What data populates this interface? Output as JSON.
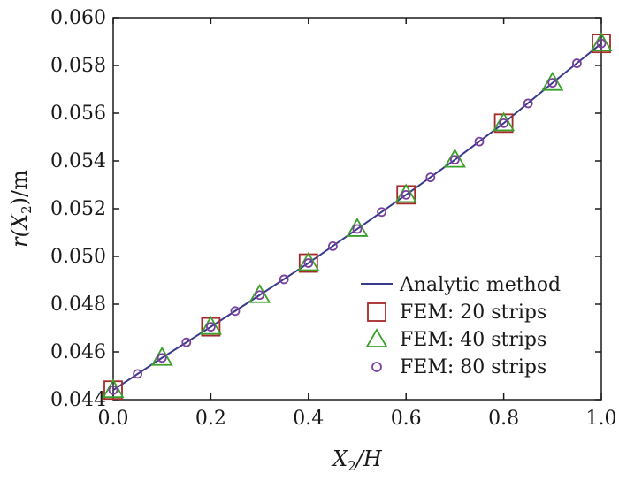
{
  "chart_data": {
    "type": "line",
    "title": "",
    "xlabel": {
      "main": "X",
      "sub": "2",
      "suffix": "/H"
    },
    "ylabel": {
      "main": "r(X",
      "sub": "2",
      "suffix": ")/m"
    },
    "xlim": [
      0.0,
      1.0
    ],
    "ylim": [
      0.044,
      0.06
    ],
    "x_ticks": [
      0.0,
      0.2,
      0.4,
      0.6,
      0.8,
      1.0
    ],
    "x_tick_labels": [
      "0.0",
      "0.2",
      "0.4",
      "0.6",
      "0.8",
      "1.0"
    ],
    "y_ticks": [
      0.044,
      0.046,
      0.048,
      0.05,
      0.052,
      0.054,
      0.056,
      0.058,
      0.06
    ],
    "y_tick_labels": [
      "0.044",
      "0.046",
      "0.048",
      "0.050",
      "0.052",
      "0.054",
      "0.056",
      "0.058",
      "0.060"
    ],
    "grid": false,
    "legend_position": "bottom-right",
    "series": [
      {
        "name": "Analytic method",
        "style": "line",
        "color": "#3a3a8c",
        "x": [
          0.0,
          0.1,
          0.2,
          0.3,
          0.4,
          0.5,
          0.6,
          0.7,
          0.8,
          0.9,
          1.0
        ],
        "y": [
          0.0444,
          0.04575,
          0.04705,
          0.04838,
          0.04972,
          0.05115,
          0.05258,
          0.05405,
          0.05558,
          0.05727,
          0.05892
        ]
      },
      {
        "name": "FEM: 20 strips",
        "style": "square",
        "color": "#a52a2a",
        "x": [
          0.0,
          0.2,
          0.4,
          0.6,
          0.8,
          1.0
        ],
        "y": [
          0.0444,
          0.04705,
          0.04972,
          0.05258,
          0.05558,
          0.05892
        ]
      },
      {
        "name": "FEM: 40 strips",
        "style": "triangle",
        "color": "#3aa02a",
        "x": [
          0.0,
          0.1,
          0.2,
          0.3,
          0.4,
          0.5,
          0.6,
          0.7,
          0.8,
          0.9,
          1.0
        ],
        "y": [
          0.0444,
          0.04575,
          0.04705,
          0.04838,
          0.04972,
          0.05115,
          0.05258,
          0.05405,
          0.05558,
          0.05727,
          0.05892
        ]
      },
      {
        "name": "FEM: 80 strips",
        "style": "circle",
        "color": "#7b3fa0",
        "x": [
          0.0,
          0.05,
          0.1,
          0.15,
          0.2,
          0.25,
          0.3,
          0.35,
          0.4,
          0.45,
          0.5,
          0.55,
          0.6,
          0.65,
          0.7,
          0.75,
          0.8,
          0.85,
          0.9,
          0.95,
          1.0
        ],
        "y": [
          0.0444,
          0.04508,
          0.04575,
          0.0464,
          0.04705,
          0.04771,
          0.04838,
          0.04904,
          0.04972,
          0.05043,
          0.05115,
          0.05186,
          0.05258,
          0.05331,
          0.05405,
          0.05481,
          0.05558,
          0.05641,
          0.05727,
          0.05809,
          0.05892
        ]
      }
    ]
  }
}
